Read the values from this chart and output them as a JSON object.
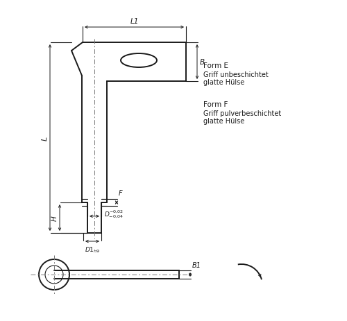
{
  "bg_color": "#ffffff",
  "line_color": "#1a1a1a",
  "fig_width": 5.0,
  "fig_height": 4.64,
  "dpi": 100,
  "text_formE_title": "Form E",
  "text_formE_line2": "Griff unbeschichtet",
  "text_formE_line3": "glatte Hülse",
  "text_formF_title": "Form F",
  "text_formF_line2": "Griff pulverbeschichtet",
  "text_formF_line3": "glatte Hülse",
  "label_L1": "L1",
  "label_L": "L",
  "label_H": "H",
  "label_B": "B",
  "label_F": "F",
  "label_B1": "B1",
  "centerline_color": "#777777"
}
